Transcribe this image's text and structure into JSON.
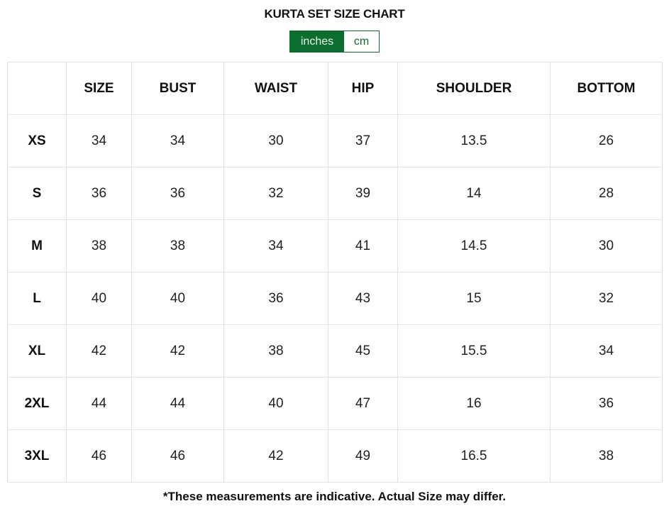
{
  "title": "KURTA SET SIZE CHART",
  "units": {
    "options": [
      "inches",
      "cm"
    ],
    "selected": "inches",
    "active_color": "#0b6e2e"
  },
  "table": {
    "headers": [
      "",
      "SIZE",
      "BUST",
      "WAIST",
      "HIP",
      "SHOULDER",
      "BOTTOM"
    ],
    "rows": [
      [
        "XS",
        "34",
        "34",
        "30",
        "37",
        "13.5",
        "26"
      ],
      [
        "S",
        "36",
        "36",
        "32",
        "39",
        "14",
        "28"
      ],
      [
        "M",
        "38",
        "38",
        "34",
        "41",
        "14.5",
        "30"
      ],
      [
        "L",
        "40",
        "40",
        "36",
        "43",
        "15",
        "32"
      ],
      [
        "XL",
        "42",
        "42",
        "38",
        "45",
        "15.5",
        "34"
      ],
      [
        "2XL",
        "44",
        "44",
        "40",
        "47",
        "16",
        "36"
      ],
      [
        "3XL",
        "46",
        "46",
        "42",
        "49",
        "16.5",
        "38"
      ]
    ]
  },
  "note": "*These measurements are indicative. Actual Size may differ."
}
